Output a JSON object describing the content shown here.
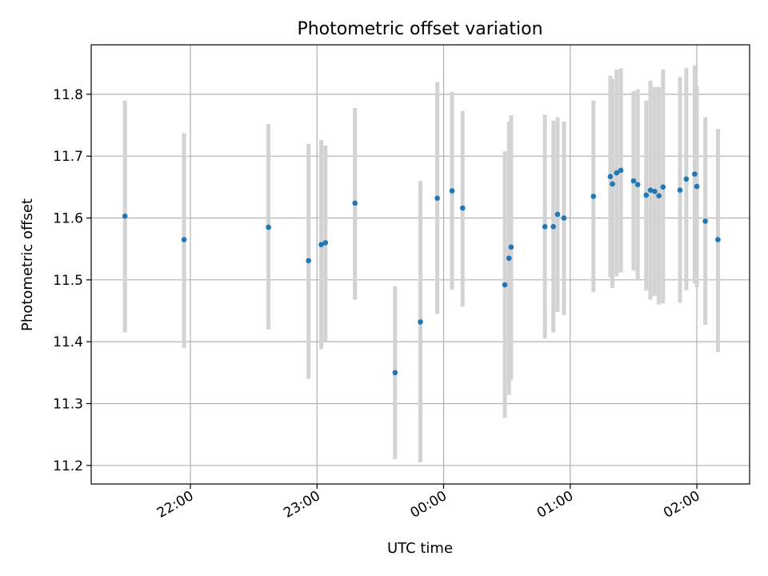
{
  "chart_data": {
    "type": "scatter",
    "title": "Photometric offset variation",
    "xlabel": "UTC time",
    "ylabel": "Photometric offset",
    "xlim": [
      "21:13",
      "02:25"
    ],
    "ylim": [
      11.17,
      11.88
    ],
    "x_ticks": [
      "22:00",
      "23:00",
      "00:00",
      "01:00",
      "02:00"
    ],
    "y_ticks": [
      "11.2",
      "11.3",
      "11.4",
      "11.5",
      "11.6",
      "11.7",
      "11.8"
    ],
    "grid": true,
    "colors": {
      "marker": "#1f77b4",
      "errorbar": "#d3d3d3"
    },
    "points": [
      {
        "x": "21:29",
        "y": 11.603,
        "err_low": 11.415,
        "err_high": 11.79
      },
      {
        "x": "21:57",
        "y": 11.565,
        "err_low": 11.39,
        "err_high": 11.737
      },
      {
        "x": "22:37",
        "y": 11.585,
        "err_low": 11.42,
        "err_high": 11.752
      },
      {
        "x": "22:56",
        "y": 11.531,
        "err_low": 11.34,
        "err_high": 11.72
      },
      {
        "x": "23:02",
        "y": 11.557,
        "err_low": 11.388,
        "err_high": 11.726
      },
      {
        "x": "23:04",
        "y": 11.56,
        "err_low": 11.4,
        "err_high": 11.717
      },
      {
        "x": "23:18",
        "y": 11.624,
        "err_low": 11.468,
        "err_high": 11.778
      },
      {
        "x": "23:37",
        "y": 11.35,
        "err_low": 11.21,
        "err_high": 11.49
      },
      {
        "x": "23:49",
        "y": 11.432,
        "err_low": 11.205,
        "err_high": 11.66
      },
      {
        "x": "23:57",
        "y": 11.632,
        "err_low": 11.445,
        "err_high": 11.82
      },
      {
        "x": "00:04",
        "y": 11.644,
        "err_low": 11.484,
        "err_high": 11.804
      },
      {
        "x": "00:09",
        "y": 11.616,
        "err_low": 11.457,
        "err_high": 11.773
      },
      {
        "x": "00:29",
        "y": 11.492,
        "err_low": 11.277,
        "err_high": 11.708
      },
      {
        "x": "00:31",
        "y": 11.535,
        "err_low": 11.314,
        "err_high": 11.756
      },
      {
        "x": "00:32",
        "y": 11.553,
        "err_low": 11.338,
        "err_high": 11.766
      },
      {
        "x": "00:48",
        "y": 11.586,
        "err_low": 11.405,
        "err_high": 11.767
      },
      {
        "x": "00:52",
        "y": 11.586,
        "err_low": 11.415,
        "err_high": 11.757
      },
      {
        "x": "00:54",
        "y": 11.606,
        "err_low": 11.448,
        "err_high": 11.763
      },
      {
        "x": "00:57",
        "y": 11.6,
        "err_low": 11.443,
        "err_high": 11.756
      },
      {
        "x": "01:11",
        "y": 11.635,
        "err_low": 11.48,
        "err_high": 11.79
      },
      {
        "x": "01:19",
        "y": 11.667,
        "err_low": 11.504,
        "err_high": 11.83
      },
      {
        "x": "01:20",
        "y": 11.655,
        "err_low": 11.487,
        "err_high": 11.825
      },
      {
        "x": "01:22",
        "y": 11.673,
        "err_low": 11.506,
        "err_high": 11.84
      },
      {
        "x": "01:24",
        "y": 11.677,
        "err_low": 11.512,
        "err_high": 11.842
      },
      {
        "x": "01:30",
        "y": 11.66,
        "err_low": 11.515,
        "err_high": 11.805
      },
      {
        "x": "01:32",
        "y": 11.654,
        "err_low": 11.5,
        "err_high": 11.808
      },
      {
        "x": "01:36",
        "y": 11.637,
        "err_low": 11.483,
        "err_high": 11.79
      },
      {
        "x": "01:38",
        "y": 11.645,
        "err_low": 11.468,
        "err_high": 11.822
      },
      {
        "x": "01:40",
        "y": 11.643,
        "err_low": 11.474,
        "err_high": 11.812
      },
      {
        "x": "01:42",
        "y": 11.636,
        "err_low": 11.46,
        "err_high": 11.812
      },
      {
        "x": "01:44",
        "y": 11.65,
        "err_low": 11.462,
        "err_high": 11.84
      },
      {
        "x": "01:52",
        "y": 11.645,
        "err_low": 11.463,
        "err_high": 11.828
      },
      {
        "x": "01:55",
        "y": 11.663,
        "err_low": 11.483,
        "err_high": 11.843
      },
      {
        "x": "01:59",
        "y": 11.671,
        "err_low": 11.495,
        "err_high": 11.847
      },
      {
        "x": "02:00",
        "y": 11.651,
        "err_low": 11.488,
        "err_high": 11.813
      },
      {
        "x": "02:04",
        "y": 11.595,
        "err_low": 11.427,
        "err_high": 11.763
      },
      {
        "x": "02:10",
        "y": 11.565,
        "err_low": 11.383,
        "err_high": 11.744
      }
    ]
  }
}
